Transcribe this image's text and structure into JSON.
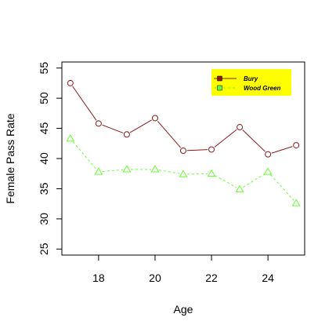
{
  "chart_data": {
    "type": "line",
    "xlabel": "Age",
    "ylabel": "Female Pass Rate",
    "x": [
      17,
      18,
      19,
      20,
      21,
      22,
      23,
      24,
      25
    ],
    "xlim": [
      16.7,
      25.3
    ],
    "ylim": [
      24,
      56
    ],
    "xticks": [
      18,
      20,
      22,
      24
    ],
    "yticks": [
      25,
      30,
      35,
      40,
      45,
      50,
      55
    ],
    "legend_position": "top-right",
    "grid": false,
    "series": [
      {
        "name": "Bury",
        "values": [
          52.5,
          45.8,
          44.0,
          46.7,
          41.3,
          41.5,
          45.2,
          40.7,
          42.2
        ],
        "color": "#8b1a1a",
        "marker": "circle",
        "line": "solid"
      },
      {
        "name": "Wood Green",
        "values": [
          43.3,
          37.8,
          38.2,
          38.2,
          37.4,
          37.5,
          34.9,
          37.8,
          32.6
        ],
        "color": "#66ff33",
        "marker": "triangle",
        "line": "dashed"
      }
    ],
    "legend_bg": "#ffff00"
  }
}
